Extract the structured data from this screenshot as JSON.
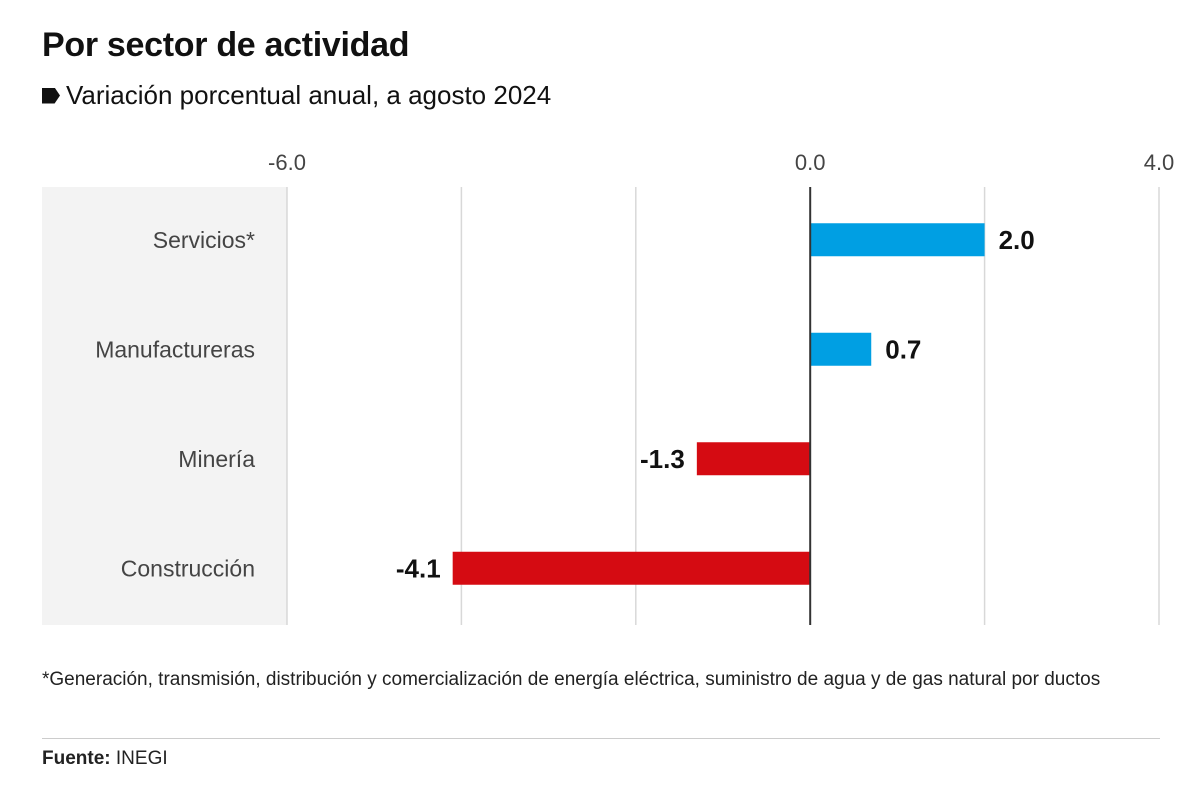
{
  "header": {
    "title": "Por sector de actividad",
    "subtitle": "Variación porcentual anual, a agosto 2024"
  },
  "chart_data": {
    "type": "bar",
    "orientation": "horizontal",
    "categories": [
      "Servicios*",
      "Manufactureras",
      "Minería",
      "Construcción"
    ],
    "values": [
      2.0,
      0.7,
      -1.3,
      -4.1
    ],
    "data_labels": [
      "2.0",
      "0.7",
      "-1.3",
      "-4.1"
    ],
    "xlim": [
      -6,
      4
    ],
    "x_gridlines": [
      -6,
      -4,
      -2,
      0,
      2,
      4
    ],
    "x_tick_labels": [
      {
        "value": -6,
        "label": "-6.0"
      },
      {
        "value": 0,
        "label": "0.0"
      },
      {
        "value": 4,
        "label": "4.0"
      }
    ],
    "axis_position": "top",
    "grid": true,
    "colors": {
      "positive": "#009fe3",
      "negative": "#d50b12",
      "label_panel": "#f3f3f3"
    }
  },
  "footer": {
    "note": "*Generación, transmisión, distribución y comercialización de energía eléctrica, suministro de agua y de gas natural por ductos",
    "source_label": "Fuente:",
    "source_value": "INEGI"
  }
}
